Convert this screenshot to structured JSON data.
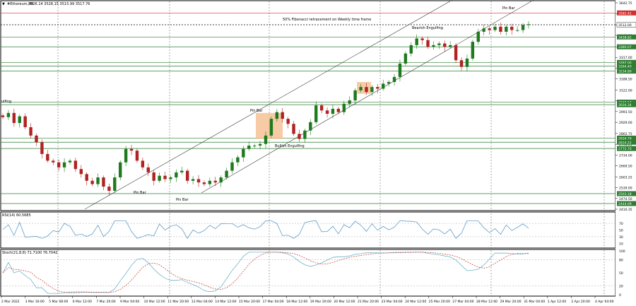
{
  "header": {
    "symbol": "#Ethereum,H4",
    "ohlc": "3526.14 3528.15 3515.99 3517.76"
  },
  "rsi_label": "RSI(14) 60.5685",
  "stoch_label": "Stoch(21,8,8) 71.7100 76.7042",
  "colors": {
    "bull": "#1f7a1f",
    "bear": "#b22222",
    "hline": "#2e7d32",
    "redline": "#d32f2f",
    "rsi": "#4a90c2",
    "stoch_main": "#6fb3c9",
    "stoch_signal": "#c0392b",
    "zone": "#f5b98a"
  },
  "price_scale": {
    "min": 2410.35,
    "max": 3642.75
  },
  "ticks": [
    "3642.75",
    "3577.00",
    "3511.25",
    "3448.50",
    "3380.00",
    "3317.00",
    "3253.00",
    "3188.50",
    "3122.00",
    "3057.75",
    "2993.50",
    "2929.00",
    "2862.75",
    "2798.25",
    "2734.00",
    "2669.50",
    "2603.25",
    "2539.00",
    "2474.50",
    "2410.35"
  ],
  "level_labels": [
    {
      "value": 3582.42,
      "text": "3582.42",
      "color": "red"
    },
    {
      "value": 3512.0,
      "text": "3512.00",
      "color": "black"
    },
    {
      "value": 3438.82,
      "text": "3438.82",
      "color": "green"
    },
    {
      "value": 3380.07,
      "text": "3380.07",
      "color": "green"
    },
    {
      "value": 3287.0,
      "text": "3287.00",
      "color": "green"
    },
    {
      "value": 3264.4,
      "text": "3264.40",
      "color": "green"
    },
    {
      "value": 3234.89,
      "text": "3234.89",
      "color": "green"
    },
    {
      "value": 3049.57,
      "text": "3049.57",
      "color": "green"
    },
    {
      "value": 3034.34,
      "text": "3034.34",
      "color": "green"
    },
    {
      "value": 2834.79,
      "text": "2834.79",
      "color": "green"
    },
    {
      "value": 2810.22,
      "text": "2810.22",
      "color": "green"
    },
    {
      "value": 2772.7,
      "text": "2772.70",
      "color": "green"
    },
    {
      "value": 2503.18,
      "text": "2503.18",
      "color": "green"
    },
    {
      "value": 2444.09,
      "text": "2444.09",
      "color": "green"
    }
  ],
  "annotations": {
    "fib": "50% Fibonacci retracement on Weekly time frame",
    "pinbar_top": "Pin Bar",
    "bearish": "Bearish Engulfing",
    "pinbar_mid": "Pin Bar",
    "bullish": "Bullish Engulfing",
    "pinbar_low1": "Pin Bar",
    "pinbar_low2": "Pin Bar",
    "left_cut": "ulfing"
  },
  "rsi_ticks": [
    "70",
    "50",
    "30",
    "10"
  ],
  "stoch_ticks": [
    "100",
    "80",
    "50",
    "20",
    "0"
  ],
  "x_labels": [
    "2 Mar 2022",
    "3 Mar 16:00",
    "5 Mar 08:00",
    "6 Mar 12:00",
    "7 Mar 20:00",
    "9 Mar 04:00",
    "10 Mar 12:00",
    "11 Mar 20:00",
    "13 Mar 04:00",
    "14 Mar 12:00",
    "15 Mar 20:00",
    "17 Mar 04:00",
    "18 Mar 12:00",
    "19 Mar 20:00",
    "20 Mar 12:00",
    "21 Mar 20:00",
    "23 Mar 04:00",
    "24 Mar 12:00",
    "25 Mar 20:00",
    "27 Mar 04:00",
    "28 Mar 12:00",
    "29 Mar 20:00",
    "31 Mar 04:00",
    "1 Apr 12:00",
    "2 Apr 20:00",
    "4 Apr 04:00"
  ],
  "chart_data": {
    "type": "candlestick",
    "title": "#Ethereum,H4",
    "ylim": [
      2410.35,
      3642.75
    ],
    "close_path": [
      2960,
      2985,
      2925,
      2965,
      2900,
      2850,
      2810,
      2740,
      2700,
      2690,
      2660,
      2690,
      2700,
      2650,
      2620,
      2580,
      2560,
      2600,
      2545,
      2520,
      2600,
      2690,
      2770,
      2760,
      2700,
      2660,
      2630,
      2580,
      2610,
      2590,
      2600,
      2630,
      2640,
      2580,
      2590,
      2570,
      2560,
      2580,
      2570,
      2600,
      2640,
      2690,
      2720,
      2770,
      2790,
      2790,
      2800,
      2850,
      2950,
      2990,
      2950,
      2920,
      2860,
      2830,
      2880,
      2930,
      3030,
      3000,
      2980,
      3010,
      2990,
      3040,
      3060,
      3120,
      3140,
      3110,
      3140,
      3130,
      3160,
      3170,
      3200,
      3280,
      3340,
      3390,
      3430,
      3420,
      3380,
      3390,
      3400,
      3380,
      3390,
      3300,
      3260,
      3310,
      3410,
      3470,
      3490,
      3480,
      3500,
      3470,
      3500,
      3480,
      3480,
      3510,
      3515
    ]
  }
}
